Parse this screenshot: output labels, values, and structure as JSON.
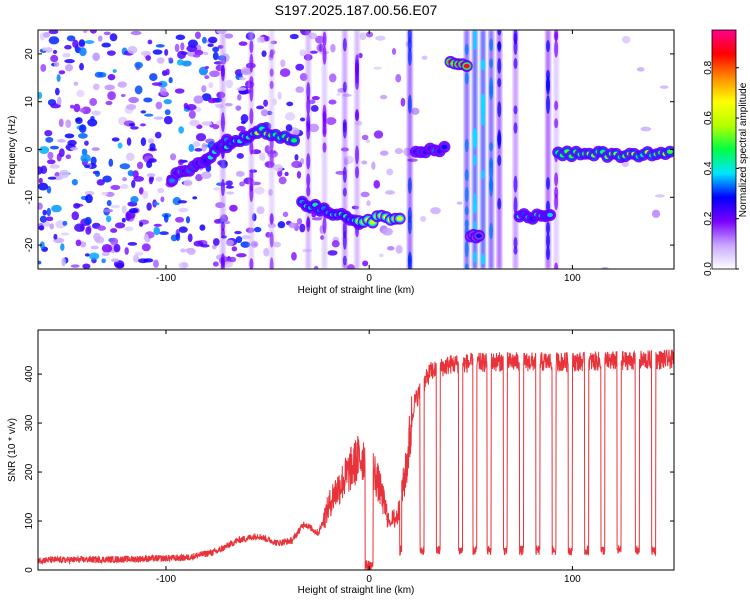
{
  "title": "S197.2025.187.00.56.E07",
  "chart_data": [
    {
      "type": "heatmap",
      "title": "S197.2025.187.00.56.E07",
      "xlabel": "Height of straight line (km)",
      "ylabel": "Frequency (Hz)",
      "xlim": [
        -163,
        150
      ],
      "ylim": [
        -25,
        25
      ],
      "x_ticks": [
        -100,
        0,
        100
      ],
      "y_ticks": [
        -20,
        -10,
        0,
        10,
        20
      ],
      "colorbar": {
        "label": "Normalized spectral amplitude",
        "range": [
          0,
          0.95
        ],
        "ticks": [
          "0.0",
          "0.2",
          "0.4",
          "0.6",
          "0.8"
        ],
        "colors": [
          "#ffffff",
          "#c9a7ff",
          "#7a00ff",
          "#0000ff",
          "#00e5ff",
          "#00ff44",
          "#b4ff00",
          "#ffff00",
          "#ff8c00",
          "#ff0000",
          "#ff0090"
        ]
      },
      "segments": [
        {
          "x": [
            -97,
            -80
          ],
          "y": [
            -6,
            -2
          ],
          "amp": 0.35
        },
        {
          "x": [
            -80,
            -70
          ],
          "y": [
            -2,
            2
          ],
          "amp": 0.4
        },
        {
          "x": [
            -70,
            -55
          ],
          "y": [
            1,
            4
          ],
          "amp": 0.45
        },
        {
          "x": [
            -55,
            -37
          ],
          "y": [
            4,
            2
          ],
          "amp": 0.6
        },
        {
          "x": [
            -33,
            -5
          ],
          "y": [
            -11,
            -15
          ],
          "amp": 0.45
        },
        {
          "x": [
            -5,
            15
          ],
          "y": [
            -15,
            -14
          ],
          "amp": 0.75
        },
        {
          "x": [
            23,
            37
          ],
          "y": [
            0,
            0
          ],
          "amp": 0.35
        },
        {
          "x": [
            40,
            48
          ],
          "y": [
            18,
            18
          ],
          "amp": 0.95
        },
        {
          "x": [
            50,
            54
          ],
          "y": [
            -18,
            -18
          ],
          "amp": 0.3
        },
        {
          "x": [
            74,
            89
          ],
          "y": [
            -14,
            -14
          ],
          "amp": 0.4
        },
        {
          "x": [
            93,
            148
          ],
          "y": [
            -1,
            -1
          ],
          "amp": 0.6
        }
      ]
    },
    {
      "type": "line",
      "xlabel": "Height of straight line (km)",
      "ylabel": "SNR (10 * v/v)",
      "xlim": [
        -163,
        150
      ],
      "ylim": [
        0,
        490
      ],
      "x_ticks": [
        -100,
        0,
        100
      ],
      "y_ticks": [
        0,
        100,
        200,
        300,
        400
      ],
      "color": "#e8333a",
      "profile": [
        [
          -163,
          20
        ],
        [
          -120,
          22
        ],
        [
          -90,
          25
        ],
        [
          -75,
          38
        ],
        [
          -65,
          60
        ],
        [
          -55,
          70
        ],
        [
          -45,
          55
        ],
        [
          -38,
          60
        ],
        [
          -32,
          95
        ],
        [
          -25,
          75
        ],
        [
          -18,
          150
        ],
        [
          -10,
          200
        ],
        [
          -5,
          230
        ],
        [
          0,
          230
        ],
        [
          5,
          170
        ],
        [
          10,
          95
        ],
        [
          14,
          110
        ],
        [
          18,
          200
        ],
        [
          22,
          340
        ],
        [
          30,
          405
        ],
        [
          40,
          420
        ],
        [
          60,
          425
        ],
        [
          100,
          425
        ],
        [
          150,
          430
        ]
      ],
      "dropouts": [
        {
          "x": [
            -2,
            2
          ],
          "y": 10
        },
        {
          "x": [
            15,
            16
          ],
          "y": 40
        },
        {
          "x": [
            25,
            27
          ],
          "y": 40
        },
        {
          "x": [
            33,
            35
          ],
          "y": 40
        },
        {
          "x": [
            44,
            46
          ],
          "y": 40
        },
        {
          "x": [
            51,
            53
          ],
          "y": 40
        },
        {
          "x": [
            58,
            60
          ],
          "y": 40
        },
        {
          "x": [
            66,
            68
          ],
          "y": 40
        },
        {
          "x": [
            74,
            76
          ],
          "y": 40
        },
        {
          "x": [
            82,
            84
          ],
          "y": 40
        },
        {
          "x": [
            90,
            92
          ],
          "y": 40
        },
        {
          "x": [
            98,
            100
          ],
          "y": 40
        },
        {
          "x": [
            106,
            108
          ],
          "y": 40
        },
        {
          "x": [
            114,
            116
          ],
          "y": 40
        },
        {
          "x": [
            122,
            124
          ],
          "y": 40
        },
        {
          "x": [
            131,
            133
          ],
          "y": 40
        },
        {
          "x": [
            139,
            141
          ],
          "y": 40
        }
      ]
    }
  ]
}
